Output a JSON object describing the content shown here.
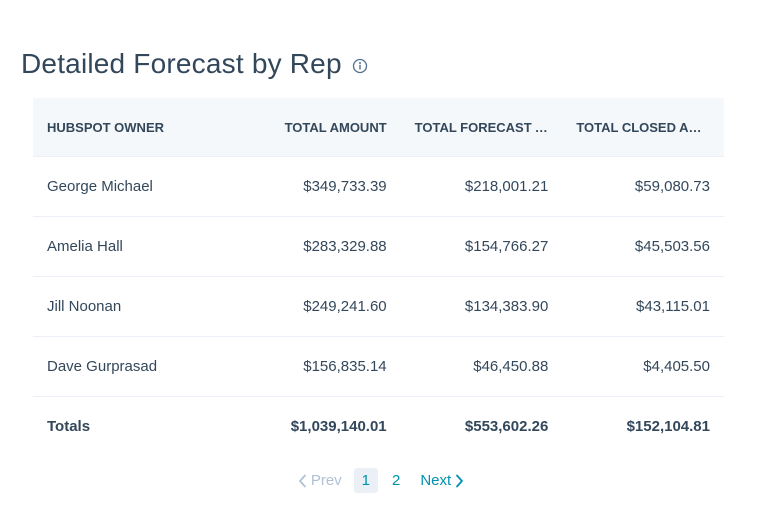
{
  "header": {
    "title": "Detailed Forecast by Rep",
    "info_icon": "info-icon"
  },
  "table": {
    "columns": [
      "HUBSPOT OWNER",
      "TOTAL AMOUNT",
      "TOTAL FORECAST A...",
      "TOTAL CLOSED AM..."
    ],
    "rows": [
      {
        "owner": "George Michael",
        "total_amount": "$349,733.39",
        "total_forecast": "$218,001.21",
        "total_closed": "$59,080.73"
      },
      {
        "owner": "Amelia Hall",
        "total_amount": "$283,329.88",
        "total_forecast": "$154,766.27",
        "total_closed": "$45,503.56"
      },
      {
        "owner": "Jill Noonan",
        "total_amount": "$249,241.60",
        "total_forecast": "$134,383.90",
        "total_closed": "$43,115.01"
      },
      {
        "owner": "Dave Gurprasad",
        "total_amount": "$156,835.14",
        "total_forecast": "$46,450.88",
        "total_closed": "$4,405.50"
      }
    ],
    "totals": {
      "label": "Totals",
      "total_amount": "$1,039,140.01",
      "total_forecast": "$553,602.26",
      "total_closed": "$152,104.81"
    }
  },
  "pagination": {
    "prev_label": "Prev",
    "pages": [
      "1",
      "2"
    ],
    "current_page": "1",
    "next_label": "Next"
  },
  "colors": {
    "text": "#33475b",
    "link": "#0091ae",
    "disabled": "#b0c1d4",
    "header_bg": "#f5f8fa",
    "border": "#eaf0f6"
  }
}
